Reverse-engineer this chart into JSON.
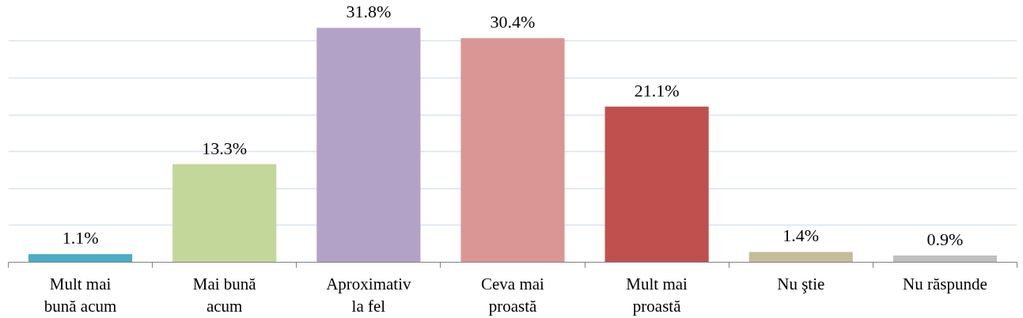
{
  "chart_data": {
    "type": "bar",
    "categories": [
      "Mult mai bună acum",
      "Mai bună acum",
      "Aproximativ la fel",
      "Ceva mai proastă",
      "Mult mai proastă",
      "Nu ştie",
      "Nu răspunde"
    ],
    "values": [
      1.1,
      13.3,
      31.8,
      30.4,
      21.1,
      1.4,
      0.9
    ],
    "colors": [
      "#4bacc6",
      "#c4d79b",
      "#b2a2c7",
      "#da9694",
      "#c0504d",
      "#c4bd97",
      "#bfbfbf"
    ],
    "value_labels": [
      "1.1%",
      "13.3%",
      "31.8%",
      "30.4%",
      "21.1%",
      "1.4%",
      "0.9%"
    ],
    "grid": "y",
    "tick_labels": "x"
  }
}
